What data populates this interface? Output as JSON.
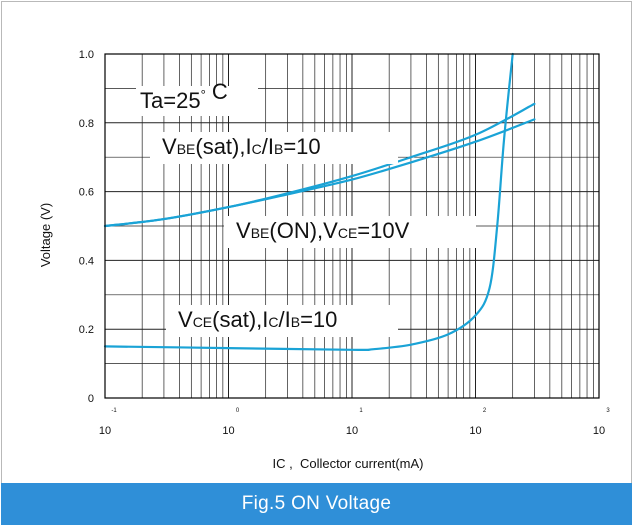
{
  "caption": "Fig.5 ON Voltage",
  "chart_data": {
    "type": "line",
    "title": "",
    "xlabel": "IC ,  Collector current(mA)",
    "ylabel": "Voltage (V)",
    "xscale": "log",
    "xlim": [
      0.1,
      1000
    ],
    "ylim": [
      0,
      1.0
    ],
    "grid": true,
    "y_ticks": [
      "0",
      "0.2",
      "0.4",
      "0.6",
      "0.8",
      "1.0"
    ],
    "x_ticks": [
      {
        "base": "10",
        "exp": "-1"
      },
      {
        "base": "10",
        "exp": "0"
      },
      {
        "base": "10",
        "exp": "1"
      },
      {
        "base": "10",
        "exp": "2"
      },
      {
        "base": "10",
        "exp": "3"
      }
    ],
    "series": [
      {
        "x": [
          0.1,
          0.3,
          1,
          3,
          10,
          30,
          100,
          300
        ],
        "y": [
          0.5,
          0.52,
          0.555,
          0.595,
          0.645,
          0.7,
          0.765,
          0.855
        ],
        "color": "#1aa3d6"
      },
      {
        "x": [
          0.1,
          0.3,
          1,
          3,
          10,
          30,
          100,
          300
        ],
        "y": [
          0.5,
          0.52,
          0.555,
          0.592,
          0.635,
          0.685,
          0.745,
          0.81
        ],
        "color": "#1aa3d6"
      },
      {
        "x": [
          0.1,
          1,
          10,
          15,
          30,
          60,
          100,
          130,
          150,
          170,
          200
        ],
        "y": [
          0.15,
          0.145,
          0.14,
          0.142,
          0.155,
          0.185,
          0.24,
          0.32,
          0.5,
          0.75,
          1.0
        ],
        "color": "#1aa3d6"
      }
    ],
    "annotations": [
      {
        "parts": [
          {
            "t": "Ta=25"
          },
          {
            "t": "°",
            "sup": true
          },
          {
            "t": " C"
          }
        ]
      },
      {
        "parts": [
          {
            "t": "V"
          },
          {
            "t": "BE",
            "sub": true
          },
          {
            "t": "(sat),I"
          },
          {
            "t": "C",
            "sub": true
          },
          {
            "t": "/I"
          },
          {
            "t": "B",
            "sub": true
          },
          {
            "t": "=10"
          }
        ]
      },
      {
        "parts": [
          {
            "t": "V"
          },
          {
            "t": "BE",
            "sub": true
          },
          {
            "t": "(ON),V"
          },
          {
            "t": "CE",
            "sub": true
          },
          {
            "t": "=10V"
          }
        ]
      },
      {
        "parts": [
          {
            "t": "V"
          },
          {
            "t": "CE",
            "sub": true
          },
          {
            "t": "(sat),I"
          },
          {
            "t": "C",
            "sub": true
          },
          {
            "t": "/I"
          },
          {
            "t": "B",
            "sub": true
          },
          {
            "t": "=10"
          }
        ]
      }
    ]
  }
}
